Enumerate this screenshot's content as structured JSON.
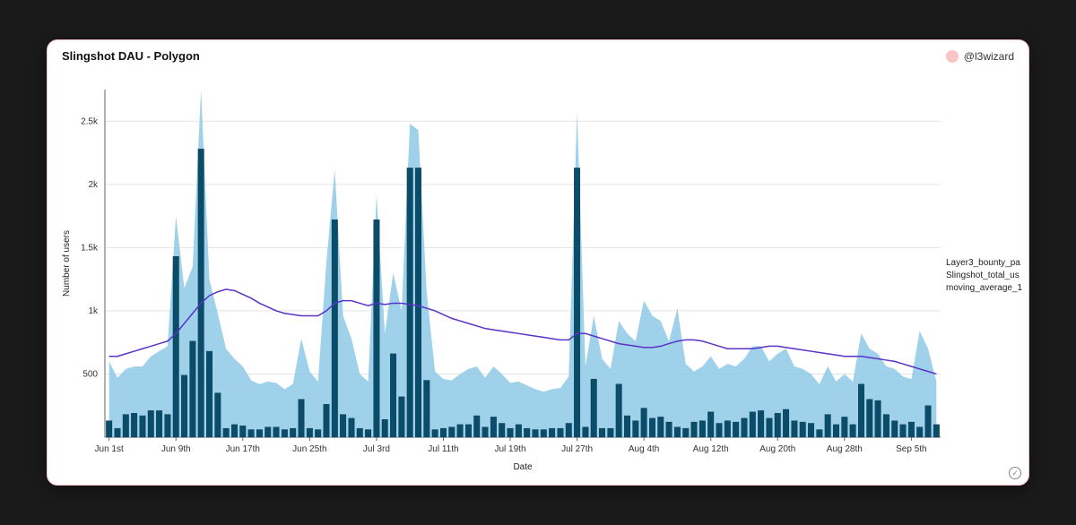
{
  "chart": {
    "title": "Slingshot DAU - Polygon",
    "user": "@l3wizard",
    "user_dot_color": "#f8c4c4",
    "type": "bar+area+line",
    "x_label": "Date",
    "y_label": "Number of users",
    "ylim": [
      0,
      2750
    ],
    "yticks": [
      500,
      1000,
      1500,
      2000,
      2500
    ],
    "ytick_labels": [
      "500",
      "1k",
      "1.5k",
      "2k",
      "2.5k"
    ],
    "x_categories": [
      "Jun 1st",
      "",
      "",
      "",
      "",
      "",
      "",
      "",
      "Jun 9th",
      "",
      "",
      "",
      "",
      "",
      "",
      "",
      "Jun 17th",
      "",
      "",
      "",
      "",
      "",
      "",
      "",
      "Jun 25th",
      "",
      "",
      "",
      "",
      "",
      "",
      "",
      "Jul 3rd",
      "",
      "",
      "",
      "",
      "",
      "",
      "",
      "Jul 11th",
      "",
      "",
      "",
      "",
      "",
      "",
      "",
      "Jul 19th",
      "",
      "",
      "",
      "",
      "",
      "",
      "",
      "Jul 27th",
      "",
      "",
      "",
      "",
      "",
      "",
      "",
      "Aug 4th",
      "",
      "",
      "",
      "",
      "",
      "",
      "",
      "Aug 12th",
      "",
      "",
      "",
      "",
      "",
      "",
      "",
      "Aug 20th",
      "",
      "",
      "",
      "",
      "",
      "",
      "",
      "Aug 28th",
      "",
      "",
      "",
      "",
      "",
      "",
      "",
      "Sep 5th",
      "",
      "",
      ""
    ],
    "x_tick_every": 8,
    "x_tick_labels": [
      "Jun 1st",
      "Jun 9th",
      "Jun 17th",
      "Jun 25th",
      "Jul 3rd",
      "Jul 11th",
      "Jul 19th",
      "Jul 27th",
      "Aug 4th",
      "Aug 12th",
      "Aug 20th",
      "Aug 28th",
      "Sep 5th"
    ],
    "series": {
      "bars": {
        "name": "Layer3_bounty_pa",
        "color": "#0a4d6b",
        "border_color": "#07344a",
        "values": [
          130,
          70,
          180,
          190,
          170,
          210,
          210,
          180,
          1430,
          490,
          760,
          2280,
          680,
          350,
          70,
          100,
          90,
          60,
          60,
          80,
          80,
          60,
          70,
          300,
          70,
          60,
          260,
          1720,
          180,
          150,
          70,
          60,
          1720,
          140,
          660,
          320,
          2130,
          2130,
          450,
          60,
          70,
          80,
          100,
          100,
          170,
          80,
          160,
          110,
          70,
          100,
          70,
          60,
          60,
          70,
          70,
          110,
          2130,
          80,
          460,
          70,
          70,
          420,
          170,
          130,
          230,
          150,
          160,
          120,
          80,
          70,
          120,
          130,
          200,
          110,
          130,
          120,
          150,
          200,
          210,
          150,
          190,
          220,
          130,
          120,
          110,
          60,
          180,
          100,
          160,
          100,
          420,
          300,
          290,
          180,
          130,
          100,
          120,
          80,
          250,
          100
        ]
      },
      "area": {
        "name": "Slingshot_total_us",
        "color": "#8ecae6",
        "opacity": 0.85,
        "values": [
          600,
          470,
          540,
          560,
          560,
          640,
          680,
          720,
          1750,
          1180,
          1350,
          2750,
          1250,
          980,
          700,
          620,
          560,
          450,
          420,
          440,
          430,
          380,
          420,
          780,
          520,
          440,
          1380,
          2120,
          960,
          780,
          500,
          440,
          1920,
          820,
          1300,
          1000,
          2480,
          2430,
          1150,
          520,
          460,
          450,
          500,
          540,
          560,
          470,
          560,
          500,
          430,
          440,
          410,
          380,
          360,
          380,
          390,
          480,
          2580,
          560,
          960,
          620,
          540,
          920,
          820,
          760,
          1080,
          960,
          920,
          760,
          1020,
          580,
          520,
          560,
          640,
          540,
          580,
          560,
          620,
          720,
          720,
          600,
          660,
          700,
          560,
          540,
          500,
          420,
          560,
          440,
          500,
          440,
          820,
          700,
          660,
          560,
          540,
          480,
          460,
          840,
          700,
          440
        ]
      },
      "line": {
        "name": "moving_average_1",
        "color": "#5a32c7",
        "values": [
          640,
          640,
          660,
          680,
          700,
          720,
          740,
          760,
          820,
          900,
          980,
          1060,
          1120,
          1150,
          1170,
          1160,
          1130,
          1100,
          1060,
          1030,
          1000,
          980,
          970,
          960,
          960,
          960,
          1000,
          1060,
          1080,
          1080,
          1060,
          1040,
          1060,
          1050,
          1060,
          1060,
          1050,
          1040,
          1020,
          1000,
          970,
          940,
          920,
          900,
          880,
          860,
          850,
          840,
          830,
          820,
          810,
          800,
          790,
          780,
          770,
          770,
          820,
          820,
          800,
          780,
          760,
          740,
          730,
          720,
          710,
          710,
          720,
          740,
          760,
          770,
          770,
          760,
          740,
          720,
          700,
          700,
          700,
          700,
          710,
          720,
          720,
          710,
          700,
          690,
          680,
          670,
          660,
          650,
          640,
          640,
          640,
          630,
          620,
          610,
          600,
          580,
          560,
          540,
          520,
          500
        ]
      }
    },
    "background_color": "#ffffff",
    "grid_color": "#e4e4e4",
    "legend_items": [
      {
        "label": "Layer3_bounty_pa",
        "color": "#000000"
      },
      {
        "label": "Slingshot_total_us",
        "color": "#8ecae6"
      },
      {
        "label": "moving_average_1",
        "color": "#5a32c7"
      }
    ],
    "card_border_color": "#f5c2c7",
    "title_fontsize": 13,
    "label_fontsize": 10
  }
}
